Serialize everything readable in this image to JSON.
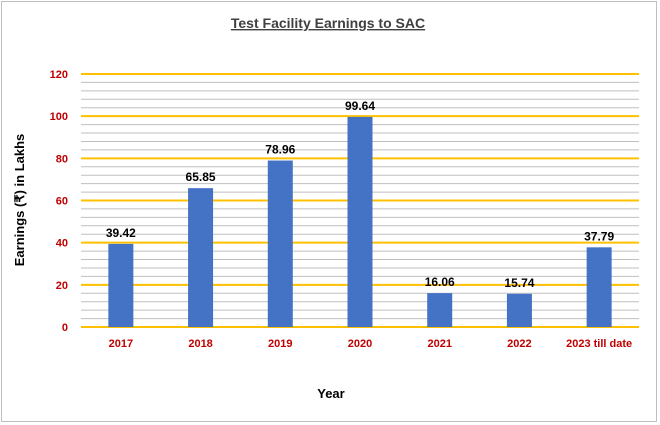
{
  "chart_data": {
    "type": "bar",
    "title": "Test Facility Earnings to SAC",
    "xlabel": "Year",
    "ylabel": "Earnings (₹) in Lakhs",
    "categories": [
      "2017",
      "2018",
      "2019",
      "2020",
      "2021",
      "2022",
      "2023 till date"
    ],
    "values": [
      39.42,
      65.85,
      78.96,
      99.64,
      16.06,
      15.74,
      37.79
    ],
    "value_labels": [
      "39.42",
      "65.85",
      "78.96",
      "99.64",
      "16.06",
      "15.74",
      "37.79"
    ],
    "ylim": [
      0,
      120
    ],
    "yticks": [
      0,
      20,
      40,
      60,
      80,
      100,
      120
    ],
    "ytick_labels": [
      "0",
      "20",
      "40",
      "60",
      "80",
      "100",
      "120"
    ],
    "grid": true,
    "legend": "none",
    "colors": {
      "bar": "#4472c4",
      "major_grid": "#ffc000",
      "minor_grid": "#bfbfbf",
      "tick_labels": "#c00000"
    }
  }
}
